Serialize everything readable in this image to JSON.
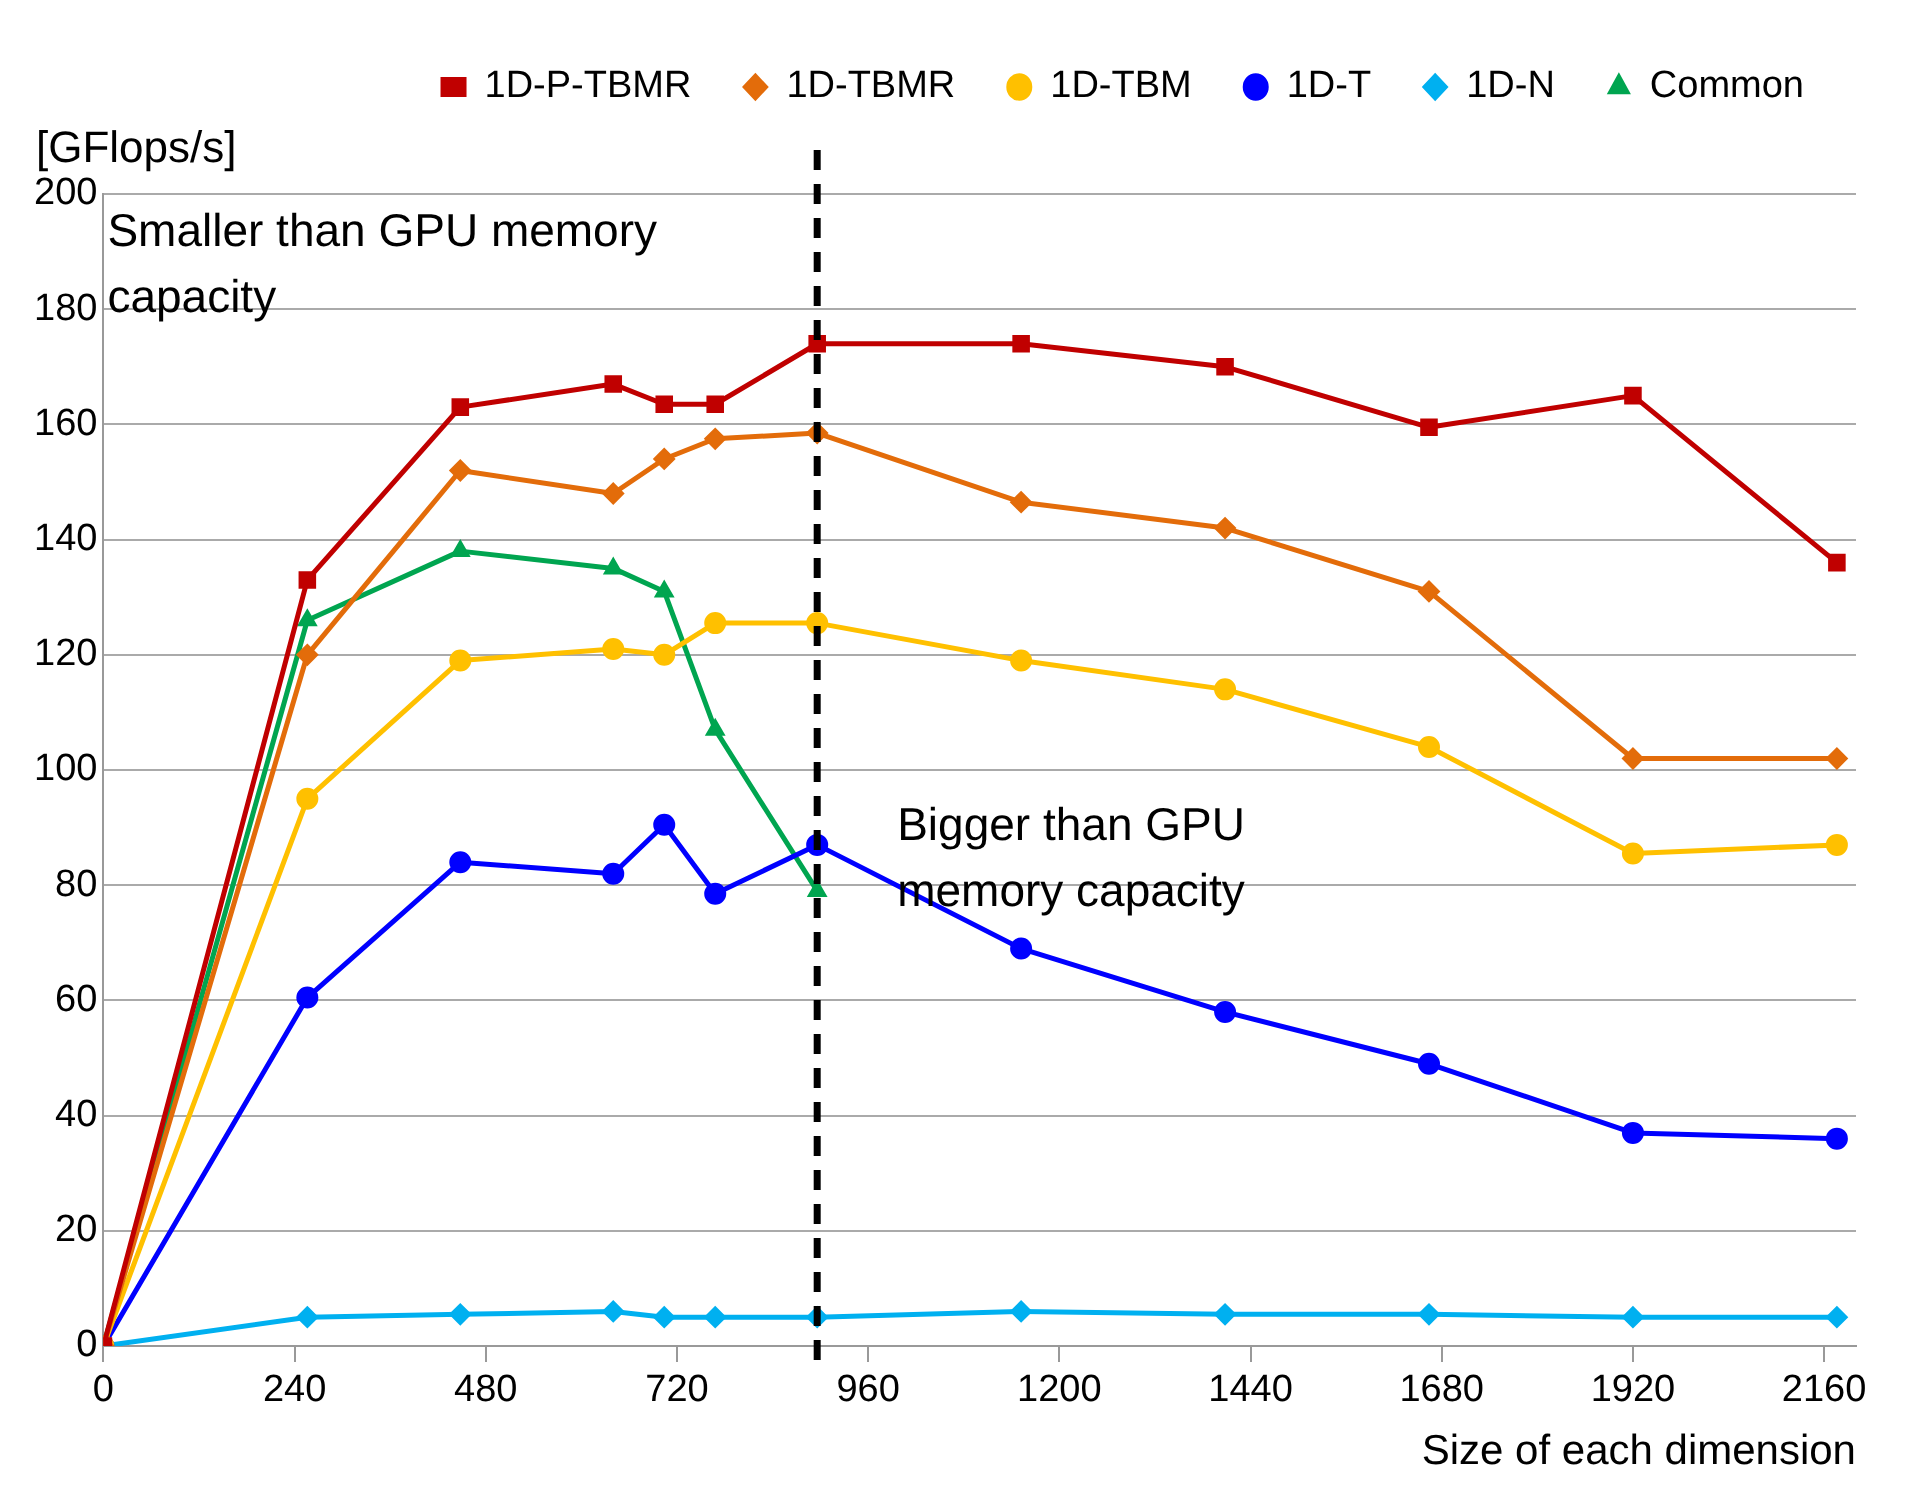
{
  "chart_data": {
    "type": "line",
    "ylabel": "[GFlops/s]",
    "xlabel": "Size of each dimension",
    "x": [
      0,
      256,
      448,
      640,
      704,
      768,
      896,
      1152,
      1408,
      1664,
      1920,
      2176
    ],
    "xlim": [
      0,
      2200
    ],
    "xticks": [
      0,
      240,
      480,
      720,
      960,
      1200,
      1440,
      1680,
      1920,
      2160
    ],
    "ylim": [
      0,
      200
    ],
    "yticks": [
      0,
      20,
      40,
      60,
      80,
      100,
      120,
      140,
      160,
      180,
      200
    ],
    "grid": "y",
    "legend": "top right",
    "series": [
      {
        "name": "1D-P-TBMR",
        "color": "#c00000",
        "marker": "square",
        "values": [
          0,
          133,
          163,
          167,
          163.5,
          163.5,
          174,
          174,
          170,
          159.5,
          165,
          136
        ]
      },
      {
        "name": "1D-TBMR",
        "color": "#e36c0a",
        "marker": "diamond",
        "values": [
          0,
          120,
          152,
          148,
          154,
          157.5,
          158.5,
          146.5,
          142,
          131,
          102,
          102
        ]
      },
      {
        "name": "1D-TBM",
        "color": "#ffc000",
        "marker": "circle",
        "values": [
          0,
          95,
          119,
          121,
          120,
          125.5,
          125.5,
          119,
          114,
          104,
          85.5,
          87
        ]
      },
      {
        "name": "1D-T",
        "color": "#0000ff",
        "marker": "circle",
        "values": [
          0,
          60.5,
          84,
          82,
          90.5,
          78.5,
          87,
          69,
          58,
          49,
          37,
          36
        ]
      },
      {
        "name": "1D-N",
        "color": "#00b0f0",
        "marker": "diamond",
        "values": [
          0,
          5,
          5.5,
          6,
          5,
          5,
          5,
          6,
          5.5,
          5.5,
          5,
          5
        ]
      },
      {
        "name": "Common",
        "color": "#00a550",
        "marker": "triangle",
        "x": [
          0,
          256,
          448,
          640,
          704,
          768,
          896
        ],
        "values": [
          0,
          126,
          138,
          135,
          131,
          107,
          79
        ]
      }
    ],
    "ref_lines": [
      {
        "axis": "x",
        "value": 896,
        "color": "#000000",
        "line_style": "dashed"
      }
    ],
    "annotations": [
      "Smaller than GPU memory capacity",
      "Bigger than GPU memory capacity"
    ]
  }
}
